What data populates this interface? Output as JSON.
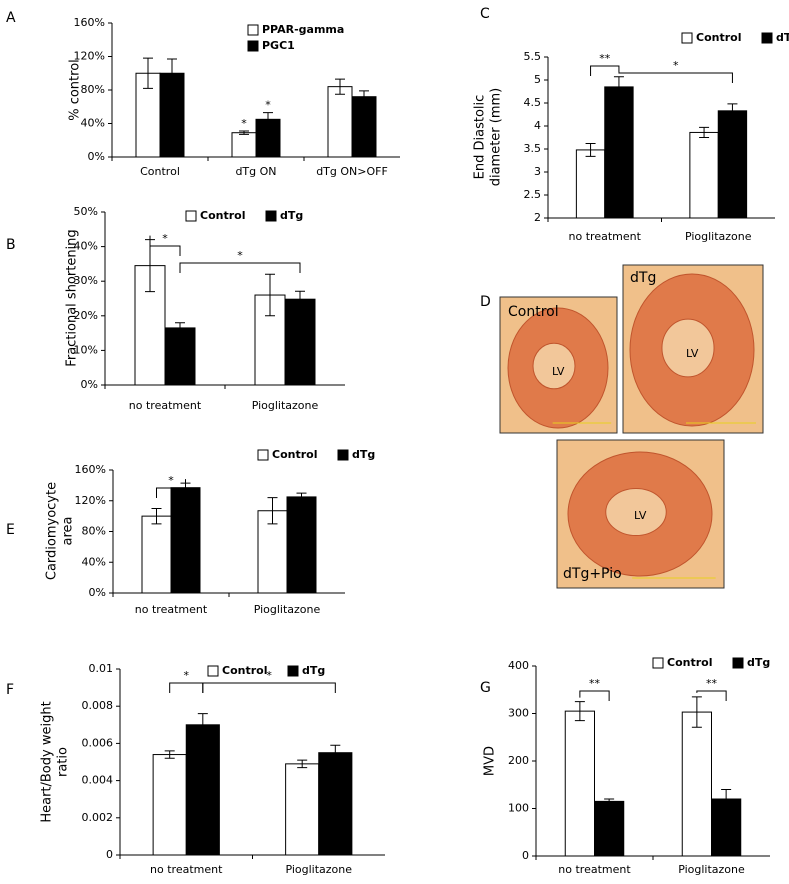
{
  "chart_data": [
    {
      "type": "bar",
      "panel": "A",
      "ylabel": [
        "% control"
      ],
      "categories": [
        "Control",
        "dTg ON",
        "dTg ON>OFF"
      ],
      "series": [
        {
          "name": "PPAR-gamma",
          "color": "#ffffff",
          "values": [
            100,
            29,
            84
          ],
          "errors": [
            18,
            2,
            9
          ]
        },
        {
          "name": "PGC1",
          "color": "#000000",
          "values": [
            100,
            45,
            72
          ],
          "errors": [
            17,
            8,
            7
          ]
        }
      ],
      "ylim": [
        0,
        160
      ],
      "yticks": [
        {
          "value": 0,
          "label": "0%"
        },
        {
          "value": 40,
          "label": "40%"
        },
        {
          "value": 80,
          "label": "80%"
        },
        {
          "value": 120,
          "label": "120%"
        },
        {
          "value": 160,
          "label": "160%"
        }
      ],
      "annotations": [
        "*",
        "*"
      ]
    },
    {
      "type": "bar",
      "panel": "B",
      "ylabel": [
        "Fractional shortening"
      ],
      "categories": [
        "no treatment",
        "Pioglitazone"
      ],
      "series": [
        {
          "name": "Control",
          "color": "#ffffff",
          "values": [
            34.5,
            26
          ],
          "errors": [
            7.5,
            6
          ]
        },
        {
          "name": "dTg",
          "color": "#000000",
          "values": [
            16.5,
            24.8
          ],
          "errors": [
            1.5,
            2.3
          ]
        }
      ],
      "ylim": [
        0,
        50
      ],
      "yticks": [
        {
          "value": 0,
          "label": "0%"
        },
        {
          "value": 10,
          "label": "10%"
        },
        {
          "value": 20,
          "label": "20%"
        },
        {
          "value": 30,
          "label": "30%"
        },
        {
          "value": 40,
          "label": "40%"
        },
        {
          "value": 50,
          "label": "50%"
        }
      ],
      "annotations": [
        "*",
        "*"
      ]
    },
    {
      "type": "bar",
      "panel": "C",
      "ylabel": [
        "End Diastolic",
        "diameter (mm)"
      ],
      "categories": [
        "no treatment",
        "Pioglitazone"
      ],
      "series": [
        {
          "name": "Control",
          "color": "#ffffff",
          "values": [
            3.48,
            3.86
          ],
          "errors": [
            0.14,
            0.11
          ]
        },
        {
          "name": "dTg",
          "color": "#000000",
          "values": [
            4.85,
            4.33
          ],
          "errors": [
            0.22,
            0.15
          ]
        }
      ],
      "ylim": [
        2,
        5.5
      ],
      "yticks": [
        2,
        2.5,
        3,
        3.5,
        4,
        4.5,
        5,
        5.5
      ],
      "annotations": [
        "**",
        "*"
      ]
    },
    {
      "type": "bar",
      "panel": "E",
      "ylabel": [
        "Cardiomyocyte",
        "area"
      ],
      "categories": [
        "no treatment",
        "Pioglitazone"
      ],
      "series": [
        {
          "name": "Control",
          "color": "#ffffff",
          "values": [
            100,
            107
          ],
          "errors": [
            10,
            17
          ]
        },
        {
          "name": "dTg",
          "color": "#000000",
          "values": [
            137,
            125
          ],
          "errors": [
            6,
            5
          ]
        }
      ],
      "ylim": [
        0,
        160
      ],
      "yticks": [
        {
          "value": 0,
          "label": "0%"
        },
        {
          "value": 40,
          "label": "40%"
        },
        {
          "value": 80,
          "label": "80%"
        },
        {
          "value": 120,
          "label": "120%"
        },
        {
          "value": 160,
          "label": "160%"
        }
      ],
      "annotations": [
        "*"
      ]
    },
    {
      "type": "bar",
      "panel": "F",
      "ylabel": [
        "Heart/Body weight",
        "ratio"
      ],
      "categories": [
        "no treatment",
        "Pioglitazone"
      ],
      "series": [
        {
          "name": "Control",
          "color": "#ffffff",
          "values": [
            0.0054,
            0.0049
          ],
          "errors": [
            0.0002,
            0.0002
          ]
        },
        {
          "name": "dTg",
          "color": "#000000",
          "values": [
            0.007,
            0.0055
          ],
          "errors": [
            0.0006,
            0.0004
          ]
        }
      ],
      "ylim": [
        0,
        0.01
      ],
      "yticks": [
        0,
        0.002,
        0.004,
        0.006,
        0.008,
        0.01
      ],
      "annotations": [
        "*",
        "*"
      ]
    },
    {
      "type": "bar",
      "panel": "G",
      "ylabel": [
        "MVD"
      ],
      "categories": [
        "no treatment",
        "Pioglitazone"
      ],
      "series": [
        {
          "name": "Control",
          "color": "#ffffff",
          "values": [
            305,
            303
          ],
          "errors": [
            20,
            32
          ]
        },
        {
          "name": "dTg",
          "color": "#000000",
          "values": [
            115,
            120
          ],
          "errors": [
            5,
            20
          ]
        }
      ],
      "ylim": [
        0,
        400
      ],
      "yticks": [
        0,
        100,
        200,
        300,
        400
      ],
      "annotations": [
        "**",
        "**"
      ]
    }
  ],
  "panel_d": {
    "panel": "D",
    "images": [
      {
        "label": "Control",
        "inner": "LV"
      },
      {
        "label": "dTg",
        "inner": "LV"
      },
      {
        "label": "dTg+Pio",
        "inner": "LV"
      }
    ]
  }
}
